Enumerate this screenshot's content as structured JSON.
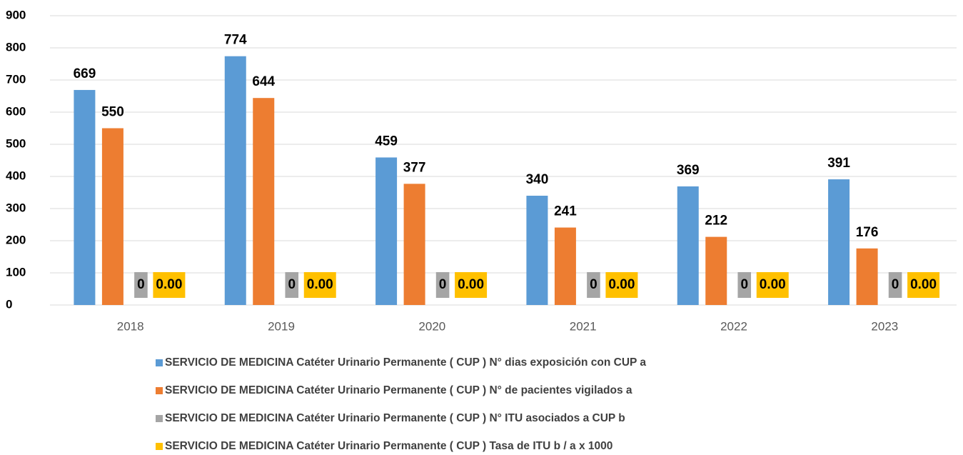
{
  "chart_data": {
    "type": "bar",
    "categories": [
      "2018",
      "2019",
      "2020",
      "2021",
      "2022",
      "2023"
    ],
    "series": [
      {
        "name": "SERVICIO DE MEDICINA Catéter Urinario Permanente ( CUP ) N° dias exposición con CUP a",
        "color": "#5b9bd5",
        "values": [
          669,
          774,
          459,
          340,
          369,
          391
        ]
      },
      {
        "name": "SERVICIO DE MEDICINA Catéter Urinario Permanente ( CUP ) N° de pacientes vigilados a",
        "color": "#ed7d31",
        "values": [
          550,
          644,
          377,
          241,
          212,
          176
        ]
      },
      {
        "name": "SERVICIO DE MEDICINA Catéter Urinario Permanente ( CUP ) N° ITU asociados a CUP b",
        "color": "#a5a5a5",
        "values": [
          0,
          0,
          0,
          0,
          0,
          0
        ],
        "label_box": true
      },
      {
        "name": "SERVICIO DE MEDICINA Catéter Urinario Permanente ( CUP ) Tasa de ITU b / a x 1000",
        "color": "#ffc000",
        "values": [
          0,
          0,
          0,
          0,
          0,
          0
        ],
        "value_labels": [
          "0.00",
          "0.00",
          "0.00",
          "0.00",
          "0.00",
          "0.00"
        ],
        "label_box": true
      }
    ],
    "ylim": [
      0,
      900
    ],
    "yticks": [
      0,
      100,
      200,
      300,
      400,
      500,
      600,
      700,
      800,
      900
    ],
    "grid": true,
    "legend": "bottom"
  }
}
